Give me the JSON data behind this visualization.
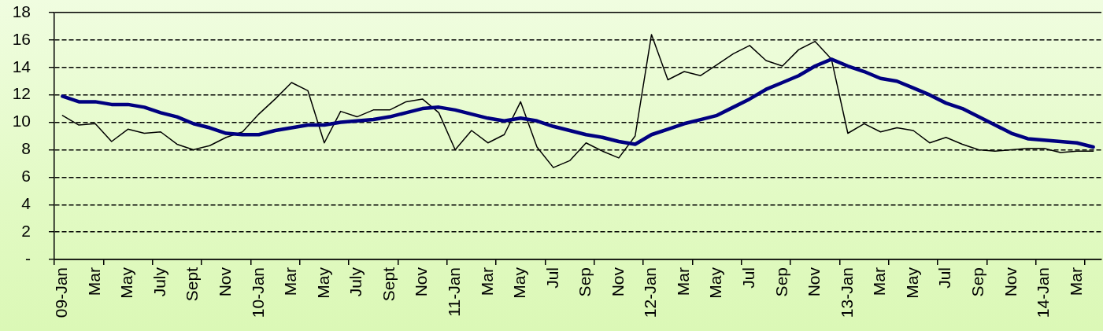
{
  "chart_data": {
    "type": "line",
    "categories": [
      "09-Jan",
      null,
      "Mar",
      null,
      "May",
      null,
      "July",
      null,
      "Sept",
      null,
      "Nov",
      null,
      "10-Jan",
      null,
      "Mar",
      null,
      "May",
      null,
      "July",
      null,
      "Sept",
      null,
      "Nov",
      null,
      "11-Jan",
      null,
      "Mar",
      null,
      "May",
      null,
      "Jul",
      null,
      "Sep",
      null,
      "Nov",
      null,
      "12-Jan",
      null,
      "Mar",
      null,
      "May",
      null,
      "Jul",
      null,
      "Sep",
      null,
      "Nov",
      null,
      "13-Jan",
      null,
      "Mar",
      null,
      "May",
      null,
      "Jul",
      null,
      "Sep",
      null,
      "Nov",
      null,
      "14-Jan",
      null,
      "Mar",
      null
    ],
    "series": [
      {
        "color": "#000000",
        "values": [
          10.5,
          9.8,
          9.9,
          8.6,
          9.5,
          9.2,
          9.3,
          8.4,
          8.0,
          8.3,
          8.9,
          9.3,
          10.6,
          11.7,
          12.9,
          12.3,
          8.5,
          10.8,
          10.4,
          10.9,
          10.9,
          11.5,
          11.7,
          10.7,
          8.0,
          9.4,
          8.5,
          9.1,
          11.5,
          8.2,
          6.7,
          7.2,
          8.5,
          7.9,
          7.4,
          9.0,
          16.4,
          13.1,
          13.7,
          13.4,
          14.2,
          15.0,
          15.6,
          14.5,
          14.1,
          15.3,
          15.9,
          14.6,
          9.2,
          9.9,
          9.3,
          9.6,
          9.4,
          8.5,
          8.9,
          8.4,
          8.0,
          7.9,
          8.0,
          8.1,
          8.1,
          7.8,
          7.9,
          7.9
        ]
      },
      {
        "color": "#000080",
        "values": [
          11.9,
          11.5,
          11.5,
          11.3,
          11.3,
          11.1,
          10.7,
          10.4,
          9.9,
          9.6,
          9.2,
          9.1,
          9.1,
          9.4,
          9.6,
          9.8,
          9.8,
          10.0,
          10.1,
          10.2,
          10.4,
          10.7,
          11.0,
          11.1,
          10.9,
          10.6,
          10.3,
          10.1,
          10.3,
          10.1,
          9.7,
          9.4,
          9.1,
          8.9,
          8.6,
          8.4,
          9.1,
          9.5,
          9.9,
          10.2,
          10.5,
          11.1,
          11.7,
          12.4,
          12.9,
          13.4,
          14.1,
          14.6,
          14.1,
          13.7,
          13.2,
          13.0,
          12.5,
          12.0,
          11.4,
          11.0,
          10.4,
          9.8,
          9.2,
          8.8,
          8.7,
          8.6,
          8.5,
          8.2
        ]
      }
    ],
    "ylim": [
      0,
      18
    ],
    "yticks": [
      {
        "value": 0,
        "label": "-"
      },
      2,
      4,
      6,
      8,
      10,
      12,
      14,
      16,
      18
    ],
    "grid": "y",
    "marker": "none",
    "line_style": "solid"
  }
}
